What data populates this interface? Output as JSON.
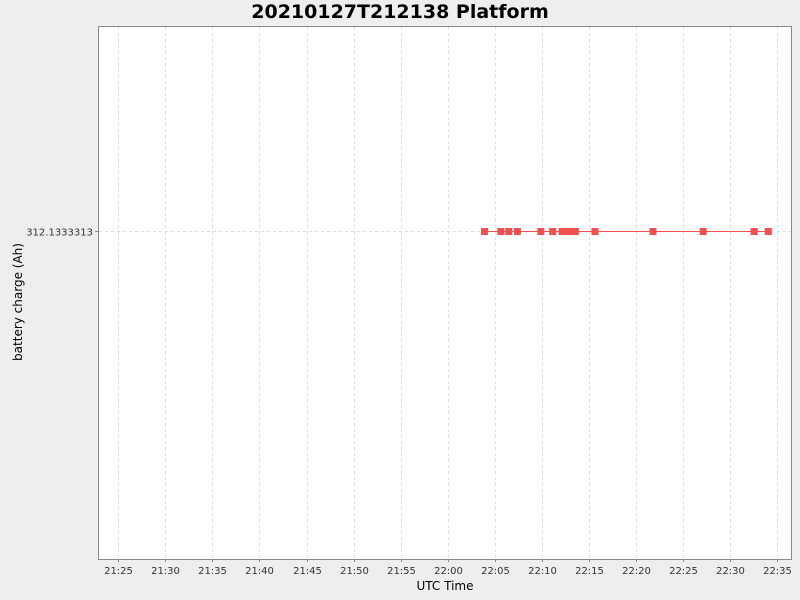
{
  "chart_data": {
    "type": "line",
    "title": "20210127T212138 Platform",
    "xlabel": "UTC Time",
    "ylabel": "battery charge (Ah)",
    "x_ticks": [
      "21:25",
      "21:30",
      "21:35",
      "21:40",
      "21:45",
      "21:50",
      "21:55",
      "22:00",
      "22:05",
      "22:10",
      "22:15",
      "22:20",
      "22:25",
      "22:30",
      "22:35"
    ],
    "xlim": [
      "21:22:50",
      "22:36:30"
    ],
    "y_ticks": [
      "312.1333313"
    ],
    "grid": true,
    "legend": "none",
    "series": [
      {
        "color": "#f05050",
        "marker": "square",
        "x": [
          "22:03:55",
          "22:05:40",
          "22:06:30",
          "22:07:25",
          "22:09:55",
          "22:11:10",
          "22:12:10",
          "22:12:45",
          "22:13:10",
          "22:13:35",
          "22:15:40",
          "22:21:50",
          "22:27:10",
          "22:32:35",
          "22:34:05"
        ],
        "y": [
          312.1333,
          312.1333,
          312.1333,
          312.1333,
          312.1333,
          312.1333,
          312.1333,
          312.1333,
          312.1333,
          312.1333,
          312.1333,
          312.1333,
          312.1333,
          312.1333,
          312.1333
        ]
      }
    ]
  }
}
